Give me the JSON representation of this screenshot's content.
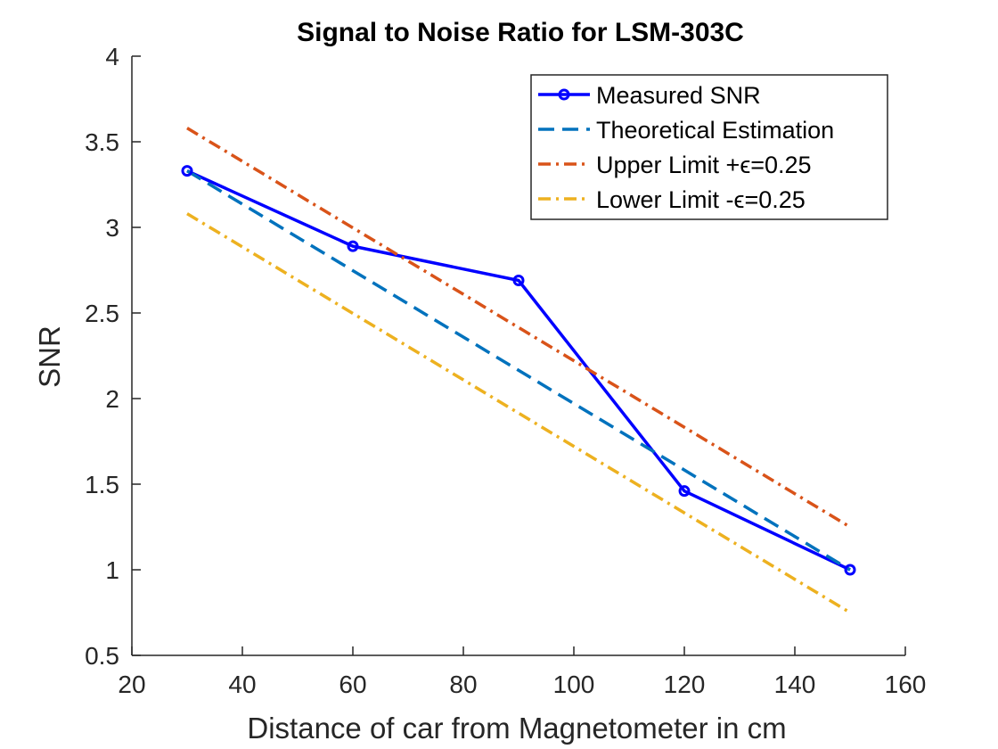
{
  "chart_data": {
    "type": "line",
    "title": "Signal to Noise Ratio for LSM-303C",
    "xlabel": "Distance of car from Magnetometer in cm",
    "ylabel": "SNR",
    "xlim": [
      20,
      160
    ],
    "ylim": [
      0.5,
      4
    ],
    "xticks": [
      20,
      40,
      60,
      80,
      100,
      120,
      140,
      160
    ],
    "yticks": [
      0.5,
      1,
      1.5,
      2,
      2.5,
      3,
      3.5,
      4
    ],
    "xtick_labels": [
      "20",
      "40",
      "60",
      "80",
      "100",
      "120",
      "140",
      "160"
    ],
    "ytick_labels": [
      "0.5",
      "1",
      "1.5",
      "2",
      "2.5",
      "3",
      "3.5",
      "4"
    ],
    "grid": false,
    "legend_position": "top-right",
    "series": [
      {
        "name": "Measured SNR",
        "color": "#0000ff",
        "style": "solid",
        "marker": "circle",
        "x": [
          30,
          60,
          90,
          120,
          150
        ],
        "y": [
          3.33,
          2.89,
          2.69,
          1.46,
          1.0
        ]
      },
      {
        "name": "Theoretical Estimation",
        "color": "#0072bd",
        "style": "dashed",
        "marker": "none",
        "x": [
          30,
          150
        ],
        "y": [
          3.33,
          1.0
        ]
      },
      {
        "name": "Upper Limit +ϵ=0.25",
        "color": "#d95319",
        "style": "dashdot",
        "marker": "none",
        "x": [
          30,
          150
        ],
        "y": [
          3.58,
          1.25
        ]
      },
      {
        "name": "Lower Limit -ϵ=0.25",
        "color": "#edb120",
        "style": "dashdot",
        "marker": "none",
        "x": [
          30,
          150
        ],
        "y": [
          3.08,
          0.75
        ]
      }
    ]
  }
}
